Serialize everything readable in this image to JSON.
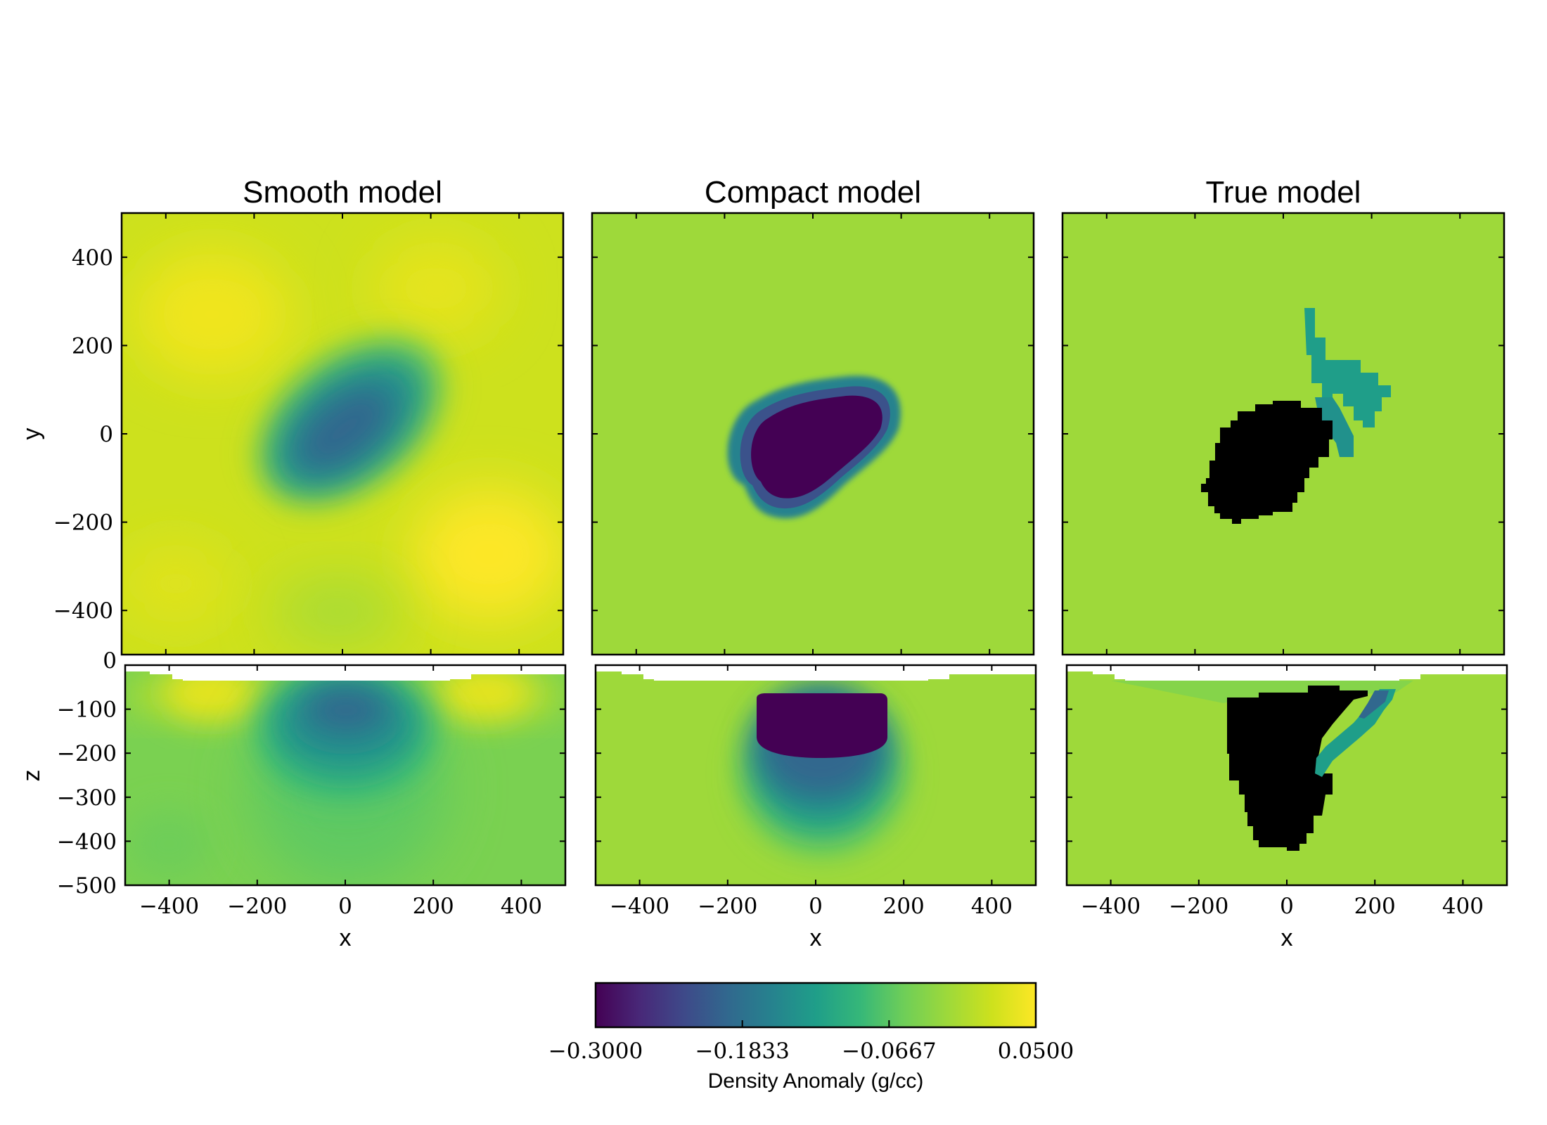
{
  "chart_data": [
    {
      "type": "heatmap",
      "panel": "Smooth model plan view",
      "title": "Smooth model",
      "xlabel": "",
      "ylabel": "y",
      "xlim": [
        -500,
        500
      ],
      "ylim": [
        -500,
        500
      ],
      "y_ticks": [
        "400",
        "200",
        "0",
        "−200",
        "−400"
      ],
      "background_value": 0.02,
      "features": [
        {
          "shape": "ellipse",
          "center": [
            20,
            30
          ],
          "radii": [
            230,
            150
          ],
          "rotation_deg": 38,
          "value": -0.17
        },
        {
          "shape": "ellipse",
          "center": [
            330,
            -280
          ],
          "radii": [
            170,
            150
          ],
          "value": 0.05
        },
        {
          "shape": "ellipse",
          "center": [
            -320,
            220
          ],
          "radii": [
            160,
            140
          ],
          "value": 0.045
        }
      ]
    },
    {
      "type": "heatmap",
      "panel": "Compact model plan view",
      "title": "Compact model",
      "xlim": [
        -500,
        500
      ],
      "ylim": [
        -500,
        500
      ],
      "background_value": 0.0,
      "features": [
        {
          "shape": "blob",
          "center": [
            0,
            -30
          ],
          "extent_x": [
            -185,
            195
          ],
          "extent_y": [
            -205,
            140
          ],
          "rotation_deg": 38,
          "value": -0.3
        }
      ]
    },
    {
      "type": "heatmap",
      "panel": "True model plan view",
      "title": "True model",
      "xlim": [
        -500,
        500
      ],
      "ylim": [
        -500,
        500
      ],
      "background_value": 0.0,
      "features": [
        {
          "shape": "polygon",
          "value": -0.3
        },
        {
          "shape": "polygon",
          "value": -0.12
        }
      ]
    },
    {
      "type": "heatmap",
      "panel": "Smooth model section",
      "xlabel": "x",
      "ylabel": "z",
      "xlim": [
        -500,
        500
      ],
      "ylim": [
        -500,
        0
      ],
      "x_ticks": [
        "−400",
        "−200",
        "0",
        "200",
        "400"
      ],
      "y_ticks": [
        "0",
        "−100",
        "−200",
        "−300",
        "−400",
        "−500"
      ],
      "background_value": -0.02,
      "features": [
        {
          "shape": "ellipse",
          "center": [
            0,
            -110
          ],
          "radii": [
            180,
            130
          ],
          "value": -0.17
        }
      ]
    },
    {
      "type": "heatmap",
      "panel": "Compact model section",
      "xlabel": "x",
      "xlim": [
        -500,
        500
      ],
      "ylim": [
        -500,
        0
      ],
      "x_ticks": [
        "−400",
        "−200",
        "0",
        "200",
        "400"
      ],
      "background_value": 0.0,
      "features": [
        {
          "shape": "blob",
          "extent_x": [
            -170,
            200
          ],
          "extent_z": [
            -420,
            -65
          ],
          "value": -0.3
        }
      ]
    },
    {
      "type": "heatmap",
      "panel": "True model section",
      "xlabel": "x",
      "xlim": [
        -500,
        500
      ],
      "ylim": [
        -500,
        0
      ],
      "x_ticks": [
        "−400",
        "−200",
        "0",
        "200",
        "400"
      ],
      "background_value": 0.0,
      "features": [
        {
          "shape": "polygon",
          "value": -0.3
        },
        {
          "shape": "polygon",
          "value": -0.12
        }
      ]
    }
  ],
  "colorbar": {
    "label": "Density Anomaly (g/cc)",
    "min": -0.3,
    "max": 0.05,
    "ticks": [
      "−0.3000",
      "−0.1833",
      "−0.0667",
      "0.0500"
    ],
    "colormap": [
      "#440154",
      "#3b528b",
      "#21918c",
      "#5ec962",
      "#fde725"
    ]
  }
}
